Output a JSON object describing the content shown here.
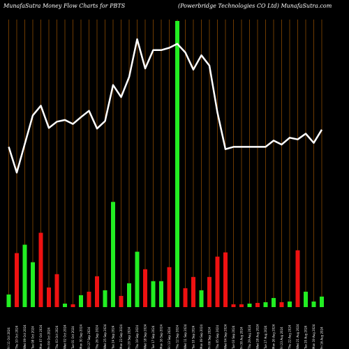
{
  "chart_data": {
    "type": "bar",
    "title_left": "MunafaSutra  Money Flow  Charts for PBTS",
    "title_right": "(Powerbridge    Technologies CO Ltd) MunafaSutra.com",
    "colors": {
      "up": "#22ee22",
      "down": "#ee1111",
      "line": "#ffffff",
      "grid": "#8a4a00",
      "background": "#000000"
    },
    "categories": [
      "Fri 11 Oct 2024",
      "Thu 10 Oct 2024",
      "Wed 09 Oct 2024",
      "Tue 08 Oct 2024",
      "Mon 07 Oct 2024",
      "Fri 04 Oct 2024",
      "Thu 03 Oct 2024",
      "Wed 02 Oct 2024",
      "Tue 01 Oct 2024",
      "Mon 30 Sep 2024",
      "Fri 27 Sep 2024",
      "Thu 26 Sep 2024",
      "Wed 25 Sep 2024",
      "Tue 24 Sep 2024",
      "Mon 23 Sep 2024",
      "Fri 20 Sep 2024",
      "Thu 19 Sep 2024",
      "Wed 18 Sep 2024",
      "Tue 17 Sep 2024",
      "Mon 16 Sep 2024",
      "Fri 13 Sep 2024",
      "Thu 12 Sep 2024",
      "Wed 11 Sep 2024",
      "Tue 10 Sep 2024",
      "Mon 09 Sep 2024",
      "Fri 06 Sep 2024",
      "Thu 05 Sep 2024",
      "Wed 04 Sep 2024",
      "Tue 03 Sep 2024",
      "Fri 30 Aug 2024",
      "Thu 29 Aug 2024",
      "Wed 28 Aug 2024",
      "Tue 27 Aug 2024",
      "Mon 26 Aug 2024",
      "Fri 23 Aug 2024",
      "Thu 22 Aug 2024",
      "Wed 21 Aug 2024",
      "Tue 20 Aug 2024",
      "Mon 19 Aug 2024",
      "Fri 16 Aug 2024"
    ],
    "flow_values": [
      18,
      77,
      89,
      64,
      106,
      28,
      47,
      5,
      4,
      17,
      22,
      44,
      24,
      150,
      16,
      34,
      79,
      54,
      37,
      37,
      57,
      408,
      27,
      43,
      24,
      43,
      72,
      78,
      4,
      4,
      5,
      6,
      7,
      13,
      7,
      8,
      81,
      22,
      8,
      15
    ],
    "flow_direction": [
      "up",
      "down",
      "up",
      "up",
      "down",
      "down",
      "down",
      "up",
      "down",
      "up",
      "down",
      "down",
      "up",
      "up",
      "down",
      "up",
      "up",
      "down",
      "up",
      "up",
      "down",
      "up",
      "down",
      "down",
      "up",
      "down",
      "down",
      "down",
      "down",
      "down",
      "up",
      "down",
      "up",
      "up",
      "down",
      "up",
      "down",
      "up",
      "up",
      "up"
    ],
    "price_line": [
      220,
      265,
      215,
      165,
      148,
      187,
      176,
      173,
      180,
      168,
      157,
      188,
      175,
      112,
      133,
      98,
      32,
      83,
      51,
      51,
      47,
      40,
      55,
      85,
      60,
      78,
      160,
      224,
      220,
      220,
      220,
      220,
      220,
      209,
      216,
      204,
      207,
      197,
      213,
      190
    ],
    "flow_max": 408,
    "line_scale": [
      0,
      500
    ]
  }
}
